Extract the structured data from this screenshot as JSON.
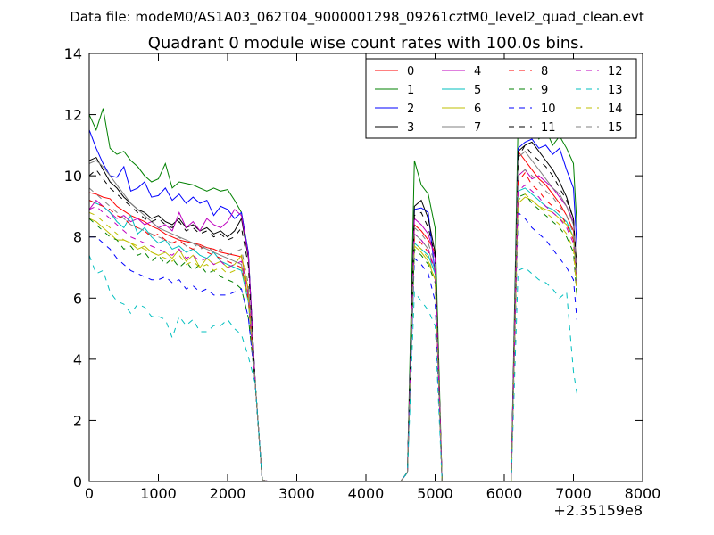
{
  "figure": {
    "suptitle": "Data file: modeM0/AS1A03_062T04_9000001298_09261cztM0_level2_quad_clean.evt"
  },
  "chart_data": {
    "type": "line",
    "title": "Quadrant 0 module wise count rates with 100.0s bins.",
    "xlabel": "",
    "ylabel": "",
    "x_offset_label": "+2.35159e8",
    "xlim": [
      0,
      8000
    ],
    "ylim": [
      0,
      14
    ],
    "xticks": [
      0,
      1000,
      2000,
      3000,
      4000,
      5000,
      6000,
      7000,
      8000
    ],
    "yticks": [
      0,
      2,
      4,
      6,
      8,
      10,
      12,
      14
    ],
    "grid": false,
    "legend": {
      "position": "top-right",
      "columns": 4
    },
    "series": [
      {
        "name": "0",
        "color": "#ff0000",
        "dash": "solid",
        "seg1": [
          9.45,
          9.4,
          9.3,
          9.25,
          9.0,
          8.85,
          8.7,
          8.6,
          8.5,
          8.35,
          8.25,
          8.1,
          8.0,
          7.9,
          7.85,
          7.8,
          7.75,
          7.65,
          7.6,
          7.5,
          7.45,
          7.4,
          7.35
        ],
        "seg2": [
          8.4,
          8.2,
          7.9,
          7.5
        ],
        "seg3": [
          10.8,
          10.5,
          10.2,
          9.9,
          9.7,
          9.4,
          9.1,
          8.7,
          8.2
        ]
      },
      {
        "name": "1",
        "color": "#008000",
        "dash": "solid",
        "seg1": [
          12.0,
          11.5,
          12.2,
          10.9,
          10.7,
          10.8,
          10.5,
          10.3,
          10.0,
          9.8,
          9.9,
          10.4,
          9.6,
          9.8,
          9.75,
          9.7,
          9.6,
          9.5,
          9.6,
          9.5,
          9.55,
          9.2,
          8.8
        ],
        "seg2": [
          10.5,
          9.7,
          9.4,
          8.3
        ],
        "seg3": [
          11.8,
          11.4,
          11.6,
          11.2,
          11.5,
          11.0,
          11.3,
          10.9,
          10.4
        ]
      },
      {
        "name": "2",
        "color": "#0000ff",
        "dash": "solid",
        "seg1": [
          11.5,
          10.9,
          10.4,
          10.0,
          9.95,
          10.3,
          9.5,
          9.6,
          9.8,
          9.3,
          9.35,
          9.6,
          9.2,
          9.4,
          9.1,
          9.3,
          9.1,
          9.2,
          8.7,
          9.0,
          8.9,
          8.6,
          8.8
        ],
        "seg2": [
          8.9,
          8.95,
          8.8,
          6.8
        ],
        "seg3": [
          10.9,
          11.1,
          11.2,
          10.9,
          11.0,
          10.7,
          10.9,
          10.2,
          9.6
        ]
      },
      {
        "name": "3",
        "color": "#000000",
        "dash": "solid",
        "seg1": [
          10.5,
          10.6,
          10.2,
          9.8,
          9.6,
          9.3,
          9.1,
          8.9,
          8.8,
          8.6,
          8.7,
          8.5,
          8.4,
          8.6,
          8.3,
          8.4,
          8.2,
          8.3,
          8.1,
          8.2,
          8.0,
          8.2,
          8.6
        ],
        "seg2": [
          9.0,
          9.2,
          8.6,
          7.5
        ],
        "seg3": [
          10.8,
          11.0,
          11.1,
          10.8,
          10.5,
          10.2,
          9.8,
          9.3,
          8.6
        ]
      },
      {
        "name": "4",
        "color": "#bf00bf",
        "dash": "solid",
        "seg1": [
          8.9,
          9.2,
          9.0,
          8.8,
          8.6,
          8.7,
          8.5,
          8.6,
          8.4,
          8.5,
          8.3,
          8.4,
          8.2,
          8.8,
          8.3,
          8.5,
          8.2,
          8.6,
          8.4,
          8.3,
          8.5,
          8.9,
          8.7
        ],
        "seg2": [
          8.6,
          8.4,
          8.1,
          7.3
        ],
        "seg3": [
          10.0,
          10.2,
          9.9,
          10.0,
          9.8,
          9.6,
          9.3,
          9.0,
          8.5
        ]
      },
      {
        "name": "5",
        "color": "#00bfbf",
        "dash": "solid",
        "seg1": [
          9.2,
          9.1,
          9.0,
          8.8,
          8.5,
          8.3,
          8.7,
          8.1,
          8.3,
          8.0,
          7.8,
          7.9,
          7.6,
          7.7,
          7.5,
          7.6,
          7.4,
          7.3,
          7.5,
          7.2,
          7.1,
          7.0,
          6.9
        ],
        "seg2": [
          7.8,
          7.6,
          7.4,
          6.8
        ],
        "seg3": [
          9.5,
          9.6,
          9.4,
          9.2,
          9.0,
          8.9,
          8.7,
          8.5,
          8.0
        ]
      },
      {
        "name": "6",
        "color": "#bfbf00",
        "dash": "solid",
        "seg1": [
          8.6,
          8.5,
          8.3,
          8.1,
          7.9,
          7.9,
          7.8,
          7.6,
          7.7,
          7.5,
          7.4,
          7.5,
          7.3,
          7.6,
          7.2,
          7.4,
          7.0,
          7.3,
          7.1,
          7.2,
          7.0,
          7.1,
          7.4
        ],
        "seg2": [
          7.7,
          7.5,
          7.2,
          6.6
        ],
        "seg3": [
          9.1,
          9.3,
          9.2,
          9.0,
          8.9,
          8.8,
          8.6,
          8.4,
          8.0
        ]
      },
      {
        "name": "7",
        "color": "#808080",
        "dash": "solid",
        "seg1": [
          10.4,
          10.5,
          10.3,
          10.0,
          9.7,
          9.4,
          9.1,
          8.9,
          8.7,
          8.5,
          8.3,
          8.2,
          8.1,
          8.0,
          7.9,
          7.8,
          7.7,
          7.6,
          7.5,
          7.4,
          7.3,
          7.2,
          7.1
        ],
        "seg2": [
          8.1,
          7.9,
          7.6,
          6.9
        ],
        "seg3": [
          10.6,
          10.8,
          10.5,
          10.2,
          9.9,
          9.6,
          9.4,
          9.0,
          8.4
        ]
      },
      {
        "name": "8",
        "color": "#ff0000",
        "dash": "dashed",
        "seg1": [
          9.2,
          9.1,
          9.0,
          8.9,
          8.7,
          8.6,
          8.4,
          8.3,
          8.2,
          8.0,
          8.1,
          7.9,
          7.8,
          7.9,
          7.7,
          7.6,
          7.7,
          7.5,
          7.4,
          7.3,
          7.2,
          7.1,
          7.0
        ],
        "seg2": [
          8.0,
          7.8,
          7.5,
          6.9
        ],
        "seg3": [
          9.8,
          10.1,
          9.7,
          9.5,
          9.2,
          9.0,
          8.8,
          8.4,
          7.9
        ]
      },
      {
        "name": "9",
        "color": "#008000",
        "dash": "dashed",
        "seg1": [
          8.6,
          8.4,
          8.2,
          8.0,
          7.9,
          7.6,
          7.7,
          7.4,
          7.5,
          7.2,
          7.4,
          7.1,
          7.3,
          7.0,
          7.2,
          6.9,
          7.1,
          6.8,
          6.9,
          6.7,
          6.6,
          6.5,
          6.3
        ],
        "seg2": [
          7.6,
          7.4,
          7.1,
          6.5
        ],
        "seg3": [
          9.3,
          9.4,
          9.1,
          8.9,
          8.7,
          8.5,
          8.3,
          8.0,
          7.5
        ]
      },
      {
        "name": "10",
        "color": "#0000ff",
        "dash": "dashed",
        "seg1": [
          8.0,
          8.0,
          7.8,
          7.6,
          7.3,
          7.1,
          6.9,
          6.8,
          6.7,
          6.6,
          6.6,
          6.7,
          6.5,
          6.6,
          6.3,
          6.4,
          6.2,
          6.3,
          6.1,
          6.1,
          6.1,
          6.2,
          6.3
        ],
        "seg2": [
          7.3,
          7.1,
          6.8,
          5.9
        ],
        "seg3": [
          8.8,
          8.6,
          8.3,
          8.1,
          7.9,
          7.6,
          7.3,
          7.0,
          6.6
        ]
      },
      {
        "name": "11",
        "color": "#000000",
        "dash": "dashed",
        "seg1": [
          10.0,
          10.2,
          9.9,
          9.6,
          9.4,
          9.2,
          9.0,
          8.8,
          8.6,
          8.5,
          8.6,
          8.4,
          8.3,
          8.5,
          8.2,
          8.3,
          8.1,
          8.2,
          8.0,
          8.1,
          7.9,
          8.0,
          8.3
        ],
        "seg2": [
          8.7,
          8.8,
          8.3,
          7.4
        ],
        "seg3": [
          10.6,
          11.0,
          10.7,
          10.5,
          10.3,
          10.0,
          9.6,
          9.2,
          8.6
        ]
      },
      {
        "name": "12",
        "color": "#bf00bf",
        "dash": "dashed",
        "seg1": [
          8.9,
          9.0,
          8.8,
          8.6,
          8.4,
          8.2,
          8.0,
          7.9,
          7.8,
          7.7,
          7.6,
          7.5,
          7.4,
          7.6,
          7.3,
          7.4,
          7.2,
          7.3,
          7.1,
          7.2,
          7.0,
          7.1,
          7.2
        ],
        "seg2": [
          8.1,
          7.9,
          7.6,
          6.9
        ],
        "seg3": [
          9.5,
          9.7,
          9.5,
          9.3,
          9.0,
          8.8,
          8.6,
          8.3,
          7.8
        ]
      },
      {
        "name": "13",
        "color": "#00bfbf",
        "dash": "dashed",
        "seg1": [
          7.4,
          6.8,
          6.9,
          6.2,
          5.9,
          5.8,
          5.5,
          5.8,
          5.7,
          5.4,
          5.4,
          5.3,
          4.7,
          5.4,
          5.1,
          5.3,
          4.9,
          4.9,
          5.1,
          5.1,
          5.3,
          5.0,
          4.8
        ],
        "seg2": [
          6.2,
          5.9,
          5.6,
          5.1
        ],
        "seg3": [
          6.9,
          7.0,
          6.8,
          6.6,
          6.5,
          6.3,
          6.0,
          6.2,
          3.6
        ]
      },
      {
        "name": "14",
        "color": "#bfbf00",
        "dash": "dashed",
        "seg1": [
          8.8,
          8.7,
          8.5,
          8.3,
          8.1,
          7.9,
          7.8,
          7.7,
          7.6,
          7.5,
          7.4,
          7.3,
          7.2,
          7.4,
          7.1,
          7.2,
          7.0,
          7.1,
          6.9,
          7.0,
          6.8,
          6.9,
          7.0
        ],
        "seg2": [
          7.8,
          7.6,
          7.3,
          6.6
        ],
        "seg3": [
          9.2,
          9.4,
          9.2,
          9.0,
          8.8,
          8.6,
          8.4,
          8.1,
          7.6
        ]
      },
      {
        "name": "15",
        "color": "#808080",
        "dash": "dashed",
        "seg1": [
          9.6,
          9.4,
          9.2,
          9.0,
          8.8,
          8.6,
          8.4,
          8.3,
          8.2,
          8.1,
          8.0,
          7.9,
          7.8,
          8.0,
          7.7,
          7.8,
          7.6,
          7.7,
          7.5,
          7.6,
          7.4,
          7.5,
          7.6
        ],
        "seg2": [
          8.3,
          8.1,
          7.8,
          7.1
        ],
        "seg3": [
          10.0,
          10.2,
          10.0,
          9.8,
          9.5,
          9.3,
          9.0,
          8.7,
          8.1
        ]
      }
    ]
  }
}
